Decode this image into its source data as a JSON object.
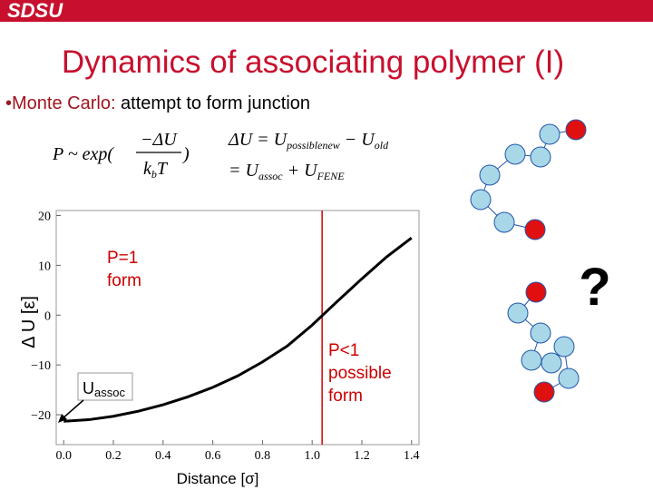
{
  "header": {
    "logo": "SDSU",
    "title": "Dynamics of associating polymer (I)"
  },
  "bullet": {
    "label": "•Monte Carlo:",
    "text": " attempt to form junction"
  },
  "equations": {
    "eq1": {
      "lhs": "P ~ exp(",
      "num": "−ΔU",
      "den_k": "k",
      "den_sub": "b",
      "den_t": "T",
      "close": ")"
    },
    "eq2": {
      "a": "ΔU = U",
      "a_sub": "possiblenew",
      "b": " − U",
      "b_sub": "old"
    },
    "eq3": {
      "a": "= U",
      "a_sub": "assoc",
      "b": " + U",
      "b_sub": "FENE"
    }
  },
  "question": "?",
  "chart_data": {
    "type": "line",
    "xlabel": "Distance [σ]",
    "ylabel": "Δ U [ε]",
    "x": [
      0,
      0.1,
      0.2,
      0.3,
      0.4,
      0.5,
      0.6,
      0.7,
      0.8,
      0.9,
      1.0,
      1.1,
      1.2,
      1.3,
      1.4
    ],
    "values": [
      -21.3,
      -21,
      -20.3,
      -19.3,
      -18,
      -16.4,
      -14.5,
      -12.2,
      -9.4,
      -6.2,
      -2.0,
      2.7,
      7.3,
      11.7,
      15.5
    ],
    "color": "#000000",
    "xlim": [
      -0.03,
      1.43
    ],
    "ylim": [
      -26,
      21
    ],
    "xticks": [
      {
        "value": 0,
        "label": "0.0"
      },
      {
        "value": 0.2,
        "label": "0.2"
      },
      {
        "value": 0.4,
        "label": "0.4"
      },
      {
        "value": 0.6,
        "label": "0.6"
      },
      {
        "value": 0.8,
        "label": "0.8"
      },
      {
        "value": 1.0,
        "label": "1.0"
      },
      {
        "value": 1.2,
        "label": "1.2"
      },
      {
        "value": 1.4,
        "label": "1.4"
      }
    ],
    "yticks": [
      {
        "value": 20,
        "label": "20"
      },
      {
        "value": 10,
        "label": "10"
      },
      {
        "value": 0,
        "label": "0"
      },
      {
        "value": -10,
        "label": "−10"
      },
      {
        "value": -20,
        "label": "−20"
      }
    ],
    "vline": {
      "x": 1.04,
      "color": "#cc0000"
    },
    "annotations": {
      "p1": [
        "P=1",
        "form"
      ],
      "p2": [
        "P<1",
        "possible",
        "form"
      ],
      "uassoc": {
        "main": "U",
        "sub": "assoc"
      }
    }
  }
}
